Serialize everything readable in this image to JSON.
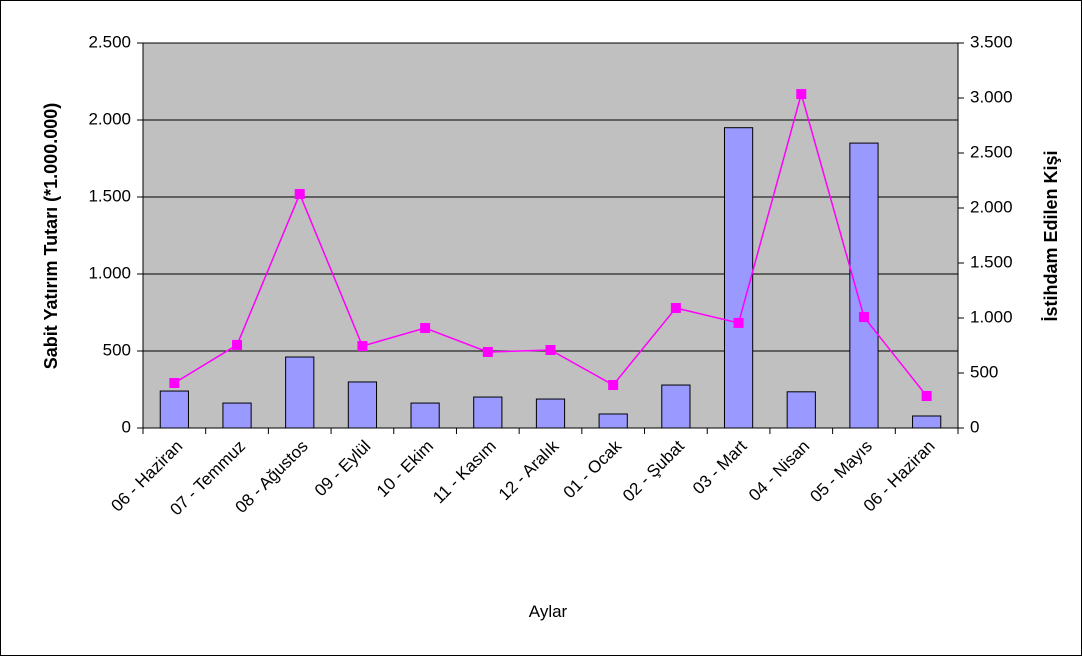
{
  "chart_data": {
    "type": "bar",
    "categories": [
      "06 - Haziran",
      "07 - Temmuz",
      "08 - Ağustos",
      "09 - Eylül",
      "10 - Ekim",
      "11 - Kasım",
      "12 - Aralık",
      "01 - Ocak",
      "02 - Şubat",
      "03 - Mart",
      "04 - Nisan",
      "05 - Mayıs",
      "06 - Haziran"
    ],
    "x_label": "Aylar",
    "y_label": "Sabit Yatırım Tutarı (*1.000.000)",
    "y2_label": "İstihdam Edilen Kişi",
    "series": [
      {
        "name": "Sabit Yatırım Tutarı",
        "type": "bar",
        "axis": "y",
        "color": "#9999ff",
        "values": [
          240,
          162,
          461,
          299,
          162,
          201,
          188,
          91,
          279,
          1950,
          235,
          1850,
          78
        ]
      },
      {
        "name": "İstihdam Edilen Kişi",
        "type": "line",
        "axis": "y2",
        "color": "#ff00ff",
        "values": [
          409,
          755,
          2127,
          745,
          909,
          691,
          709,
          391,
          1091,
          955,
          3036,
          1009,
          291
        ]
      }
    ],
    "ylim": [
      0,
      2500
    ],
    "yticks": [
      0,
      500,
      {
        "value": 1000,
        "label": "1.000"
      },
      {
        "value": 1500,
        "label": "1.500"
      },
      {
        "value": 2000,
        "label": "2.000"
      },
      {
        "value": 2500,
        "label": "2.500"
      }
    ],
    "y2lim": [
      0,
      3500
    ],
    "y2ticks": [
      0,
      500,
      {
        "value": 1000,
        "label": "1.000"
      },
      {
        "value": 1500,
        "label": "1.500"
      },
      {
        "value": 2000,
        "label": "2.000"
      },
      {
        "value": 2500,
        "label": "2.500"
      },
      {
        "value": 3000,
        "label": "3.000"
      },
      {
        "value": 3500,
        "label": "3.500"
      }
    ],
    "grid": true
  }
}
